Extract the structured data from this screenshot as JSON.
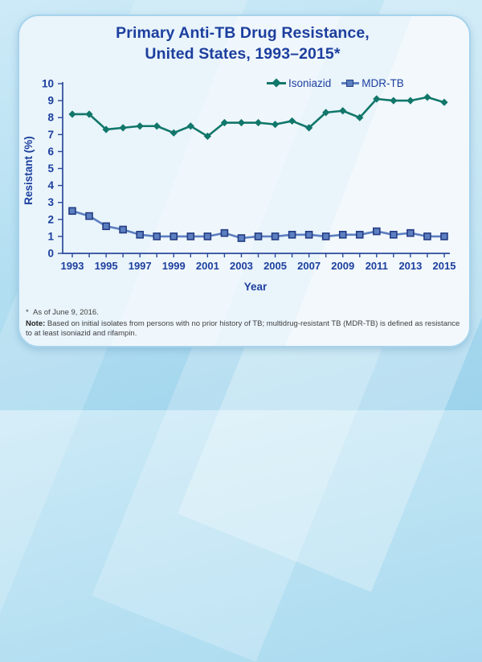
{
  "title": {
    "line1": "Primary Anti-TB Drug Resistance,",
    "line2": "United States, 1993–2015*"
  },
  "colors": {
    "title_text": "#1c3f9e",
    "axis_text": "#1c3f9e",
    "axis_line": "#2b4a9b",
    "card_background": "#e9f4fb",
    "card_border": "#a6d3ec",
    "page_background": "#b6e0f2",
    "isoniazid_line": "#11776a",
    "mdr_line": "#5c7fc0",
    "mdr_marker_fill": "#5c7fc0",
    "mdr_marker_border": "#243c84"
  },
  "chart_data": {
    "type": "line",
    "title": "Primary Anti-TB Drug Resistance, United States, 1993–2015*",
    "xlabel": "Year",
    "ylabel": "Resistant (%)",
    "ylim": [
      0,
      10
    ],
    "ytick_step": 1,
    "xtick_label_step": 2,
    "grid": false,
    "legend_position": "top-center",
    "x": [
      1993,
      1994,
      1995,
      1996,
      1997,
      1998,
      1999,
      2000,
      2001,
      2002,
      2003,
      2004,
      2005,
      2006,
      2007,
      2008,
      2009,
      2010,
      2011,
      2012,
      2013,
      2014,
      2015
    ],
    "series": [
      {
        "name": "Isoniazid",
        "marker": "diamond",
        "color": "#11776a",
        "values": [
          8.2,
          8.2,
          7.3,
          7.4,
          7.5,
          7.5,
          7.1,
          7.5,
          6.9,
          7.7,
          7.7,
          7.7,
          7.6,
          7.8,
          7.4,
          8.3,
          8.4,
          8.0,
          9.1,
          9.0,
          9.0,
          9.2,
          8.9
        ]
      },
      {
        "name": "MDR-TB",
        "marker": "square",
        "color": "#5c7fc0",
        "fill": "#5c7fc0",
        "border": "#243c84",
        "values": [
          2.5,
          2.2,
          1.6,
          1.4,
          1.1,
          1.0,
          1.0,
          1.0,
          1.0,
          1.2,
          0.9,
          1.0,
          1.0,
          1.1,
          1.1,
          1.0,
          1.1,
          1.1,
          1.3,
          1.1,
          1.2,
          1.0,
          1.0
        ]
      }
    ]
  },
  "footnotes": {
    "star_symbol": "*",
    "star_text": "As of June 9, 2016.",
    "note_label": "Note:",
    "note_text": " Based on initial isolates from persons with no prior history of TB; multidrug-resistant TB (MDR-TB) is defined as resistance to at least isoniazid and rifampin."
  }
}
